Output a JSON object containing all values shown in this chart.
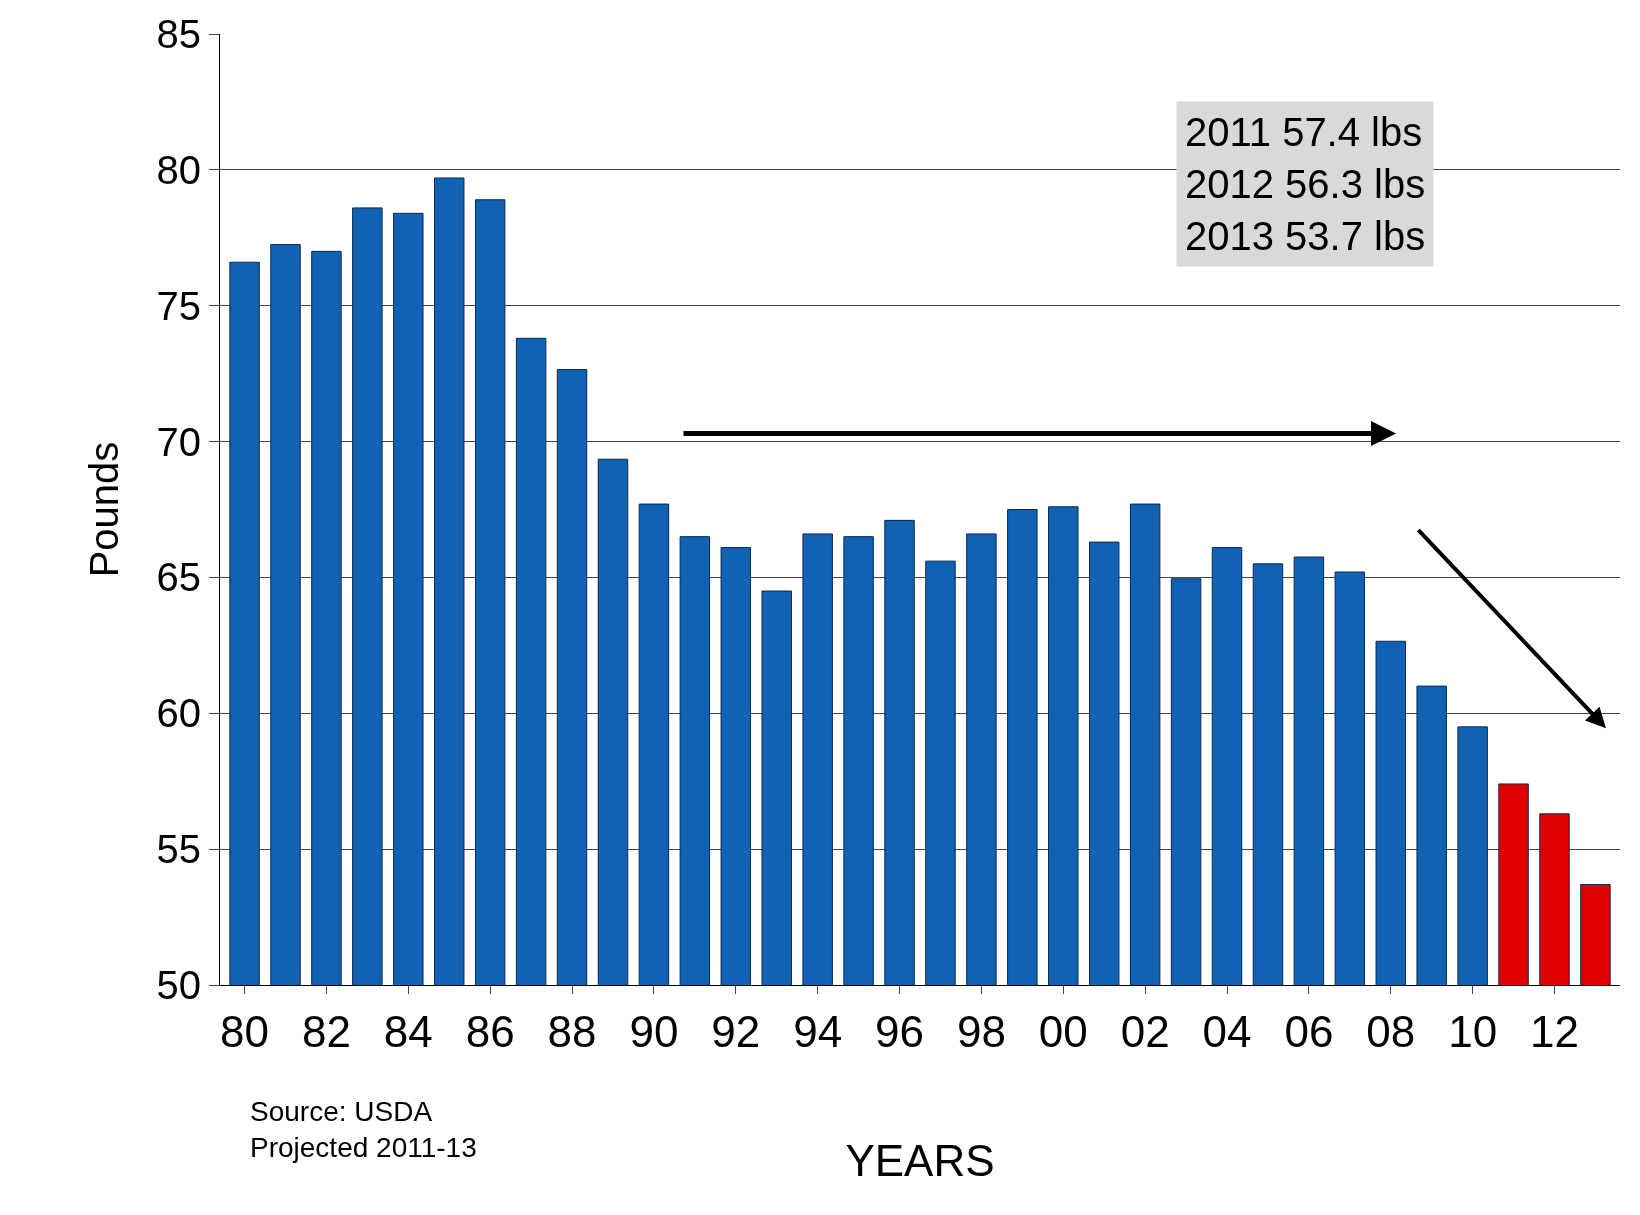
{
  "chart_data": {
    "type": "bar",
    "ylabel": "Pounds",
    "xlabel": "YEARS",
    "categories": [
      "80",
      null,
      "82",
      null,
      "84",
      null,
      "86",
      null,
      "88",
      null,
      "90",
      null,
      "92",
      null,
      "94",
      null,
      "96",
      null,
      "98",
      null,
      "00",
      null,
      "02",
      null,
      "04",
      null,
      "06",
      null,
      "08",
      null,
      "10",
      null,
      "12",
      null
    ],
    "values": [
      76.6,
      77.25,
      77.0,
      78.6,
      78.4,
      79.7,
      78.9,
      73.8,
      72.65,
      69.35,
      67.7,
      66.5,
      66.1,
      64.5,
      66.6,
      66.5,
      67.1,
      65.6,
      66.6,
      67.5,
      67.6,
      66.3,
      67.7,
      64.95,
      66.1,
      65.5,
      65.75,
      65.2,
      62.65,
      61.0,
      59.5,
      57.4,
      56.3,
      53.7
    ],
    "colors": [
      "#1262b3",
      "#1262b3",
      "#1262b3",
      "#1262b3",
      "#1262b3",
      "#1262b3",
      "#1262b3",
      "#1262b3",
      "#1262b3",
      "#1262b3",
      "#1262b3",
      "#1262b3",
      "#1262b3",
      "#1262b3",
      "#1262b3",
      "#1262b3",
      "#1262b3",
      "#1262b3",
      "#1262b3",
      "#1262b3",
      "#1262b3",
      "#1262b3",
      "#1262b3",
      "#1262b3",
      "#1262b3",
      "#1262b3",
      "#1262b3",
      "#1262b3",
      "#1262b3",
      "#1262b3",
      "#1262b3",
      "#e00000",
      "#e00000",
      "#e00000"
    ],
    "ylim": [
      50,
      85
    ],
    "yticks": [
      50,
      55,
      60,
      65,
      70,
      75,
      80,
      85
    ],
    "grid": "y",
    "legend": false,
    "annotations": [
      "2011 57.4 lbs\n2012 56.3 lbs\n2013 53.7 lbs",
      "Source: USDA",
      "Projected 2011-13"
    ]
  }
}
